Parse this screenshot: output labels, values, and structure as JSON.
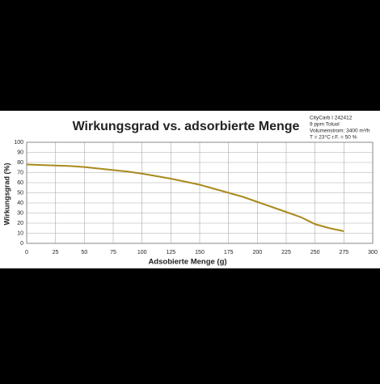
{
  "chart_data": {
    "type": "line",
    "title": "Wirkungsgrad vs. adsorbierte Menge",
    "annotation": [
      "CityCarb I 242412",
      "9 ppm Toluol",
      "Volumenstrom: 3400 m³/h",
      "T = 23°C   r.F. = 50 %"
    ],
    "x_label": "Adsobierte Menge (g)",
    "y_label": "Wirkungsgrad (%)",
    "x": [
      0,
      12.5,
      25,
      37.5,
      50,
      62.5,
      75,
      87.5,
      100,
      112.5,
      125,
      137.5,
      150,
      162.5,
      175,
      187.5,
      200,
      212.5,
      225,
      237.5,
      250,
      262.5,
      275
    ],
    "values": [
      78,
      77.5,
      77,
      76.5,
      75.5,
      74,
      72.5,
      71,
      69,
      66.5,
      64,
      61,
      58,
      54,
      50,
      46,
      41,
      36,
      31,
      26,
      19,
      15,
      12
    ],
    "color": "#a88a1c",
    "xlim": [
      0,
      300
    ],
    "xticks": [
      0,
      25,
      50,
      75,
      100,
      125,
      150,
      175,
      200,
      225,
      250,
      275,
      300
    ],
    "ylim": [
      0,
      100
    ],
    "yticks": [
      0,
      10,
      20,
      30,
      40,
      50,
      60,
      70,
      80,
      90,
      100
    ],
    "grid": true
  }
}
